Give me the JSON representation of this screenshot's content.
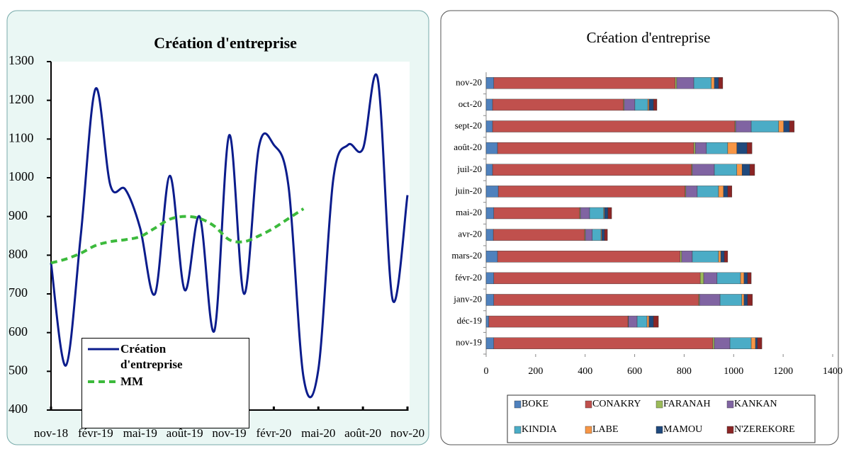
{
  "chart_data": [
    {
      "type": "line",
      "title": "Création d'entreprise",
      "categories": [
        "nov-18",
        null,
        null,
        "févr-19",
        null,
        null,
        "mai-19",
        null,
        null,
        "août-19",
        null,
        null,
        "nov-19",
        null,
        null,
        "févr-20",
        null,
        null,
        "mai-20",
        null,
        null,
        "août-20",
        null,
        null,
        "nov-20"
      ],
      "series": [
        {
          "name": "Création d'entreprise",
          "color": "#0b1c8c",
          "line_style": "solid",
          "values": [
            780,
            515,
            850,
            1230,
            980,
            970,
            870,
            700,
            1005,
            710,
            900,
            605,
            1110,
            700,
            1080,
            1085,
            975,
            485,
            505,
            995,
            1085,
            1075,
            1255,
            685,
            955
          ]
        },
        {
          "name": "MM",
          "color": "#3cba3c",
          "line_style": "dashed",
          "values": [
            780,
            790,
            805,
            825,
            835,
            840,
            848,
            870,
            893,
            900,
            895,
            875,
            840,
            835,
            850,
            870,
            895,
            920,
            null,
            null,
            null,
            null,
            null,
            null,
            null
          ]
        }
      ],
      "ylim": [
        400,
        1300
      ],
      "yticks": [
        400,
        500,
        600,
        700,
        800,
        900,
        1000,
        1100,
        1200,
        1300
      ]
    },
    {
      "type": "barh_stacked",
      "title": "Création d'entreprise",
      "categories": [
        "nov-19",
        "déc-19",
        "janv-20",
        "févr-20",
        "mars-20",
        "avr-20",
        "mai-20",
        "juin-20",
        "juil-20",
        "août-20",
        "sept-20",
        "oct-20",
        "nov-20"
      ],
      "series": [
        {
          "name": "BOKE",
          "color": "#4f81bd",
          "values": [
            31,
            11,
            31,
            31,
            46,
            29,
            31,
            49,
            26,
            46,
            26,
            26,
            31
          ]
        },
        {
          "name": "CONAKRY",
          "color": "#c0504d",
          "values": [
            885,
            562,
            828,
            834,
            738,
            369,
            347,
            755,
            804,
            793,
            979,
            529,
            733
          ]
        },
        {
          "name": "FARANAH",
          "color": "#9bbb59",
          "values": [
            6,
            2,
            3,
            14,
            6,
            3,
            3,
            3,
            3,
            6,
            3,
            3,
            6
          ]
        },
        {
          "name": "KANKAN",
          "color": "#8064a2",
          "values": [
            63,
            35,
            83,
            54,
            43,
            28,
            37,
            46,
            89,
            45,
            63,
            43,
            69
          ]
        },
        {
          "name": "KINDIA",
          "color": "#4bacc6",
          "values": [
            86,
            40,
            88,
            95,
            106,
            35,
            57,
            86,
            91,
            86,
            111,
            52,
            71
          ]
        },
        {
          "name": "LABE",
          "color": "#f79646",
          "values": [
            17,
            8,
            9,
            14,
            9,
            3,
            3,
            20,
            21,
            37,
            20,
            5,
            12
          ]
        },
        {
          "name": "MAMOU",
          "color": "#1f497d",
          "values": [
            8,
            18,
            14,
            14,
            14,
            11,
            14,
            17,
            31,
            41,
            23,
            18,
            17
          ]
        },
        {
          "name": "N'ZEREKORE",
          "color": "#8b2525",
          "values": [
            18,
            20,
            20,
            15,
            14,
            12,
            15,
            17,
            20,
            20,
            20,
            14,
            17
          ]
        }
      ],
      "xlim": [
        0,
        1400
      ],
      "xticks": [
        0,
        200,
        400,
        600,
        800,
        1000,
        1200,
        1400
      ]
    }
  ]
}
